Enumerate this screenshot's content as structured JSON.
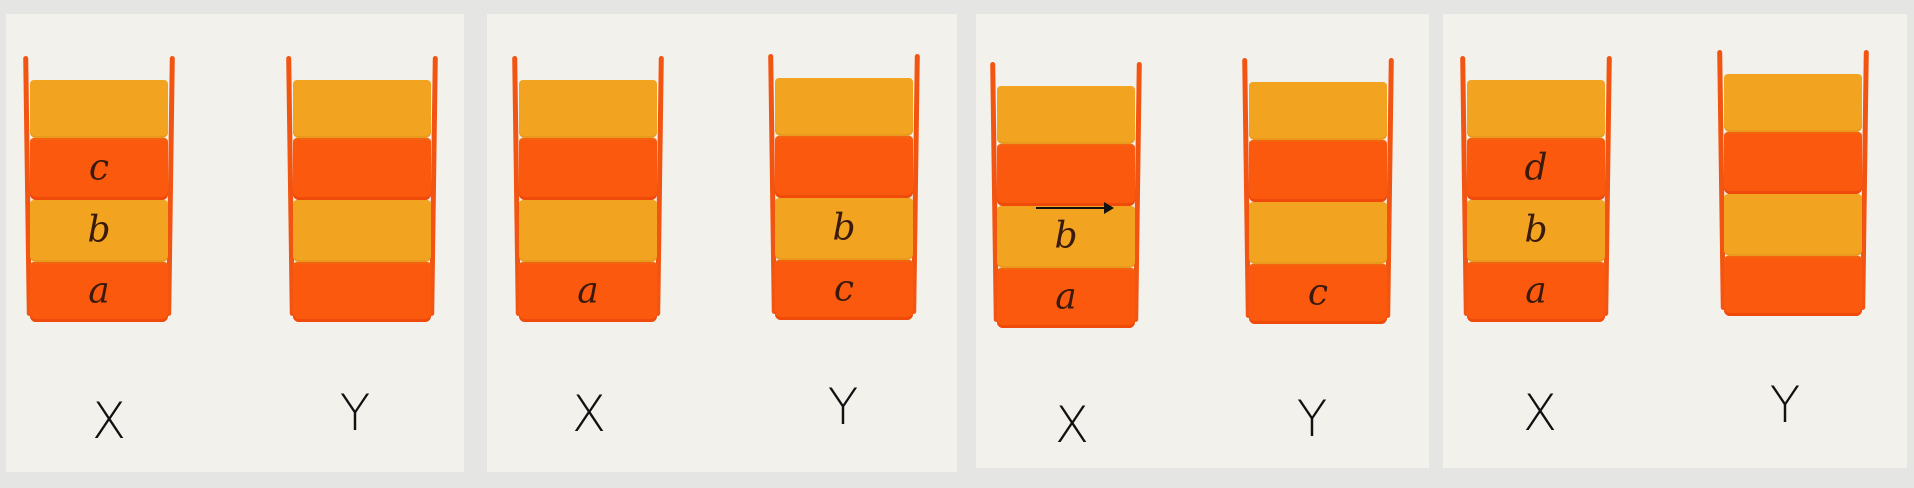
{
  "colors": {
    "background": "#e5e5e4",
    "panel": "#f3f1ec",
    "slot_dark": "#fb5a0e",
    "slot_light": "#f2a421",
    "wall": "#f25412"
  },
  "panels": [
    {
      "x": {
        "label": "X",
        "slots": [
          "",
          "c",
          "b",
          "a"
        ]
      },
      "y": {
        "label": "Y",
        "slots": [
          "",
          "",
          "",
          ""
        ]
      }
    },
    {
      "x": {
        "label": "X",
        "slots": [
          "",
          "",
          "",
          "a"
        ]
      },
      "y": {
        "label": "Y",
        "slots": [
          "",
          "",
          "b",
          "c"
        ]
      }
    },
    {
      "x": {
        "label": "X",
        "slots": [
          "",
          "",
          "b",
          "a"
        ]
      },
      "y": {
        "label": "Y",
        "slots": [
          "",
          "",
          "",
          "c"
        ]
      },
      "has_arrow": true
    },
    {
      "x": {
        "label": "X",
        "slots": [
          "",
          "d",
          "b",
          "a"
        ]
      },
      "y": {
        "label": "Y",
        "slots": [
          "",
          "",
          "",
          ""
        ]
      }
    }
  ]
}
